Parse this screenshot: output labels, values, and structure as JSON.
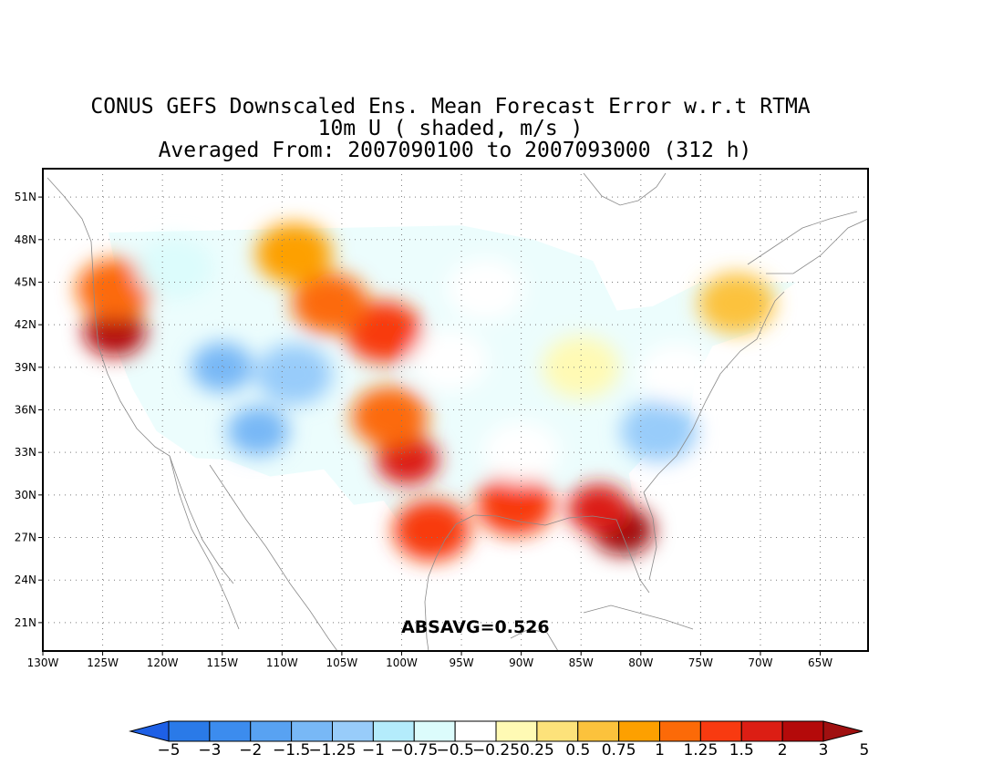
{
  "title": {
    "line1": "CONUS GEFS Downscaled Ens. Mean Forecast Error w.r.t RTMA",
    "line2": "10m U ( shaded, m/s )",
    "line3": "Averaged From: 2007090100 to 2007093000 (312 h)"
  },
  "annotation": "ABSAVG=0.526",
  "map": {
    "projection": "lat-lon",
    "lon_range": [
      -130,
      -61
    ],
    "lat_range": [
      19,
      53
    ],
    "grid": "dotted",
    "lon_tick_labels": [
      "130W",
      "125W",
      "120W",
      "115W",
      "110W",
      "105W",
      "100W",
      "95W",
      "90W",
      "85W",
      "80W",
      "75W",
      "70W",
      "65W"
    ],
    "lat_tick_labels": [
      "21N",
      "24N",
      "27N",
      "30N",
      "33N",
      "36N",
      "39N",
      "42N",
      "45N",
      "48N",
      "51N"
    ]
  },
  "colorbar": {
    "colors": [
      "#1e60e6",
      "#2a7ae8",
      "#3c8cee",
      "#58a2f2",
      "#78b8f6",
      "#98ccfa",
      "#b4ecfc",
      "#dcfcfc",
      "#ffffff",
      "#fffab4",
      "#fde27a",
      "#fcc23c",
      "#fda000",
      "#fc6a08",
      "#f83a10",
      "#dc1e14",
      "#b40a0a",
      "#a01010"
    ],
    "labels": [
      "-5",
      "-3",
      "-2",
      "-1.5",
      "-1.25",
      "-1",
      "-0.75",
      "-0.5",
      "-0.25",
      "0.25",
      "0.5",
      "0.75",
      "1",
      "1.25",
      "1.5",
      "2",
      "3",
      "5"
    ]
  },
  "shading": [
    {
      "region": "Florida peninsula",
      "lon": -81.5,
      "lat": 27.5,
      "value": 3
    },
    {
      "region": "Florida Gulf coast",
      "lon": -83.5,
      "lat": 29.0,
      "value": 1.5
    },
    {
      "region": "Louisiana coast",
      "lon": -90.5,
      "lat": 29.3,
      "value": 1.25
    },
    {
      "region": "South Texas coast",
      "lon": -97.5,
      "lat": 27.5,
      "value": 1.25
    },
    {
      "region": "Central Texas",
      "lon": -99.5,
      "lat": 32.5,
      "value": 1.5
    },
    {
      "region": "Southern High Plains",
      "lon": -101.0,
      "lat": 35.5,
      "value": 1
    },
    {
      "region": "Northern High Plains",
      "lon": -101.5,
      "lat": 41.5,
      "value": 1.25
    },
    {
      "region": "Central Rockies",
      "lon": -106.0,
      "lat": 43.5,
      "value": 1
    },
    {
      "region": "Northern Rockies",
      "lon": -109.0,
      "lat": 47.0,
      "value": 0.75
    },
    {
      "region": "California coast",
      "lon": -124.0,
      "lat": 41.5,
      "value": 2
    },
    {
      "region": "Oregon coast",
      "lon": -124.0,
      "lat": 44.5,
      "value": 1
    },
    {
      "region": "Great Basin",
      "lon": -115.0,
      "lat": 39.0,
      "value": -1.5
    },
    {
      "region": "Southwest deserts",
      "lon": -112.0,
      "lat": 34.5,
      "value": -1.5
    },
    {
      "region": "Utah / Colorado",
      "lon": -109.0,
      "lat": 38.5,
      "value": -1.25
    },
    {
      "region": "Pacific Northwest interior",
      "lon": -119.0,
      "lat": 46.0,
      "value": -0.75
    },
    {
      "region": "Southeast Atlantic coast",
      "lon": -78.5,
      "lat": 34.5,
      "value": -1.25
    },
    {
      "region": "Mid-Atlantic",
      "lon": -77.0,
      "lat": 38.5,
      "value": -0.5
    },
    {
      "region": "Ohio Valley",
      "lon": -85.0,
      "lat": 39.0,
      "value": -0.25
    },
    {
      "region": "Upper Midwest",
      "lon": -93.0,
      "lat": 44.5,
      "value": -0.5
    },
    {
      "region": "Central Plains",
      "lon": -96.0,
      "lat": 39.5,
      "value": -0.5
    },
    {
      "region": "New England",
      "lon": -72.0,
      "lat": 43.5,
      "value": 0.5
    },
    {
      "region": "Lower Mississippi Valley",
      "lon": -90.0,
      "lat": 33.0,
      "value": -0.5
    }
  ]
}
